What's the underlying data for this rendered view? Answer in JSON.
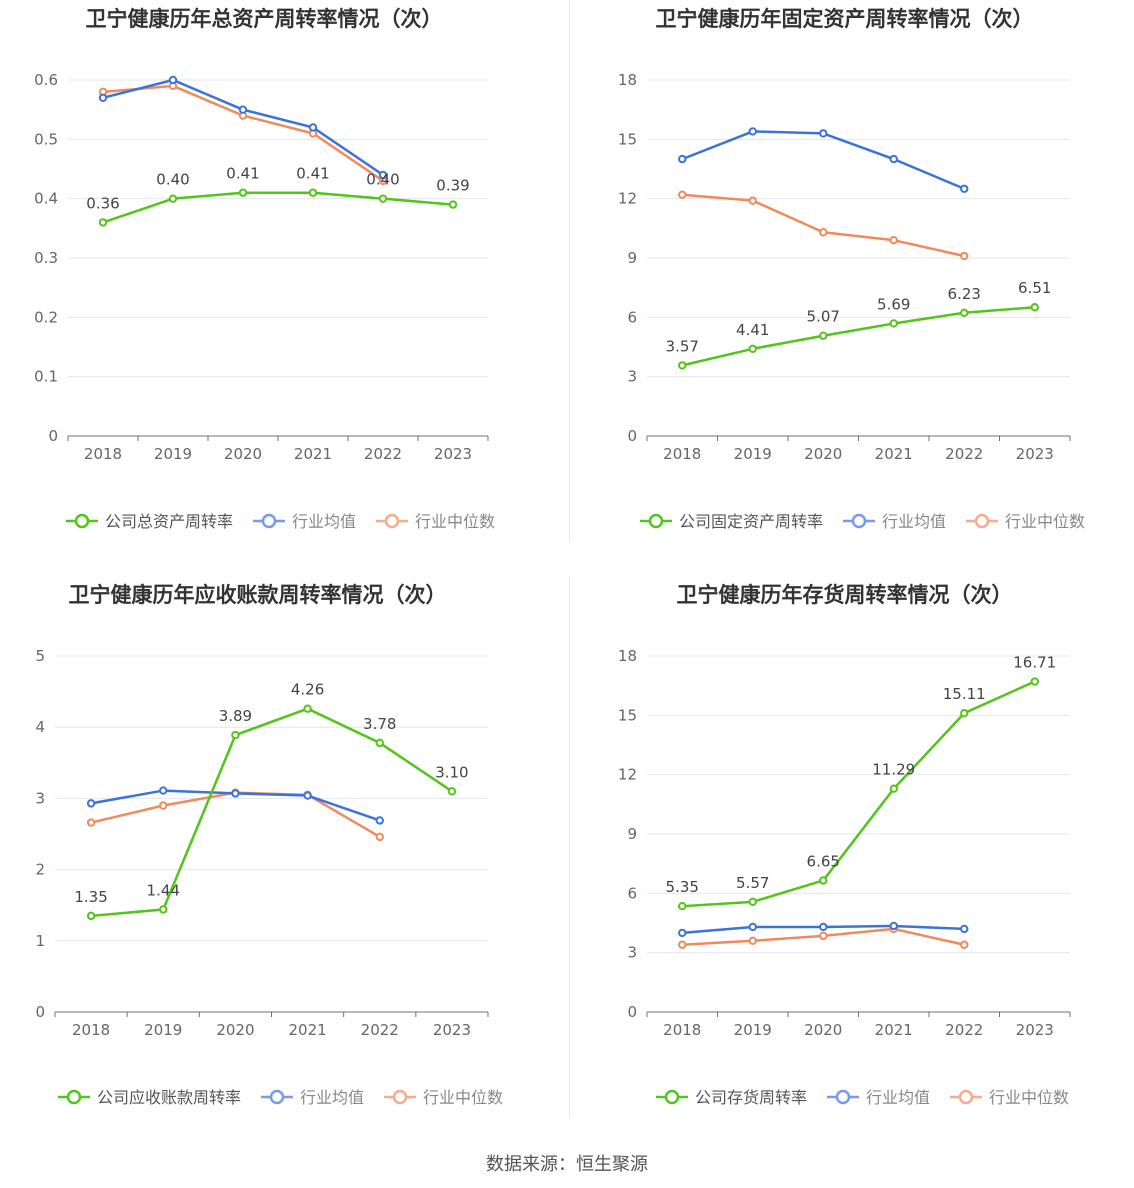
{
  "source": "数据来源：恒生聚源",
  "colors": {
    "company": "#52c41a",
    "avg": "#3b73d9",
    "median": "#f08a5d"
  },
  "chart_data": [
    {
      "type": "line",
      "title": "卫宁健康历年总资产周转率情况（次）",
      "categories": [
        "2018",
        "2019",
        "2020",
        "2021",
        "2022",
        "2023"
      ],
      "ylim": [
        0,
        0.6
      ],
      "yticks": [
        0,
        0.1,
        0.2,
        0.3,
        0.4,
        0.5,
        0.6
      ],
      "ytick_labels": [
        "0",
        "0.1",
        "0.2",
        "0.3",
        "0.4",
        "0.5",
        "0.6"
      ],
      "series": [
        {
          "name": "公司总资产周转率",
          "values": [
            0.36,
            0.4,
            0.41,
            0.41,
            0.4,
            0.39
          ],
          "labels": [
            "0.36",
            "0.40",
            "0.41",
            "0.41",
            "0.40",
            "0.39"
          ]
        },
        {
          "name": "行业均值",
          "values": [
            0.57,
            0.6,
            0.55,
            0.52,
            0.44,
            null
          ]
        },
        {
          "name": "行业中位数",
          "values": [
            0.58,
            0.59,
            0.54,
            0.51,
            0.43,
            null
          ]
        }
      ]
    },
    {
      "type": "line",
      "title": "卫宁健康历年固定资产周转率情况（次）",
      "categories": [
        "2018",
        "2019",
        "2020",
        "2021",
        "2022",
        "2023"
      ],
      "ylim": [
        0,
        18
      ],
      "yticks": [
        0,
        3,
        6,
        9,
        12,
        15,
        18
      ],
      "ytick_labels": [
        "0",
        "3",
        "6",
        "9",
        "12",
        "15",
        "18"
      ],
      "series": [
        {
          "name": "公司固定资产周转率",
          "values": [
            3.57,
            4.41,
            5.07,
            5.69,
            6.23,
            6.51
          ],
          "labels": [
            "3.57",
            "4.41",
            "5.07",
            "5.69",
            "6.23",
            "6.51"
          ]
        },
        {
          "name": "行业均值",
          "values": [
            14.0,
            15.4,
            15.3,
            14.0,
            12.5,
            null
          ]
        },
        {
          "name": "行业中位数",
          "values": [
            12.2,
            11.9,
            10.3,
            9.9,
            9.1,
            null
          ]
        }
      ]
    },
    {
      "type": "line",
      "title": "卫宁健康历年应收账款周转率情况（次）",
      "categories": [
        "2018",
        "2019",
        "2020",
        "2021",
        "2022",
        "2023"
      ],
      "ylim": [
        0,
        5
      ],
      "yticks": [
        0,
        1,
        2,
        3,
        4,
        5
      ],
      "ytick_labels": [
        "0",
        "1",
        "2",
        "3",
        "4",
        "5"
      ],
      "series": [
        {
          "name": "公司应收账款周转率",
          "values": [
            1.35,
            1.44,
            3.89,
            4.26,
            3.78,
            3.1
          ],
          "labels": [
            "1.35",
            "1.44",
            "3.89",
            "4.26",
            "3.78",
            "3.10"
          ]
        },
        {
          "name": "行业均值",
          "values": [
            2.93,
            3.11,
            3.07,
            3.04,
            2.69,
            null
          ]
        },
        {
          "name": "行业中位数",
          "values": [
            2.66,
            2.9,
            3.08,
            3.05,
            2.46,
            null
          ]
        }
      ]
    },
    {
      "type": "line",
      "title": "卫宁健康历年存货周转率情况（次）",
      "categories": [
        "2018",
        "2019",
        "2020",
        "2021",
        "2022",
        "2023"
      ],
      "ylim": [
        0,
        18
      ],
      "yticks": [
        0,
        3,
        6,
        9,
        12,
        15,
        18
      ],
      "ytick_labels": [
        "0",
        "3",
        "6",
        "9",
        "12",
        "15",
        "18"
      ],
      "series": [
        {
          "name": "公司存货周转率",
          "values": [
            5.35,
            5.57,
            6.65,
            11.29,
            15.11,
            16.71
          ],
          "labels": [
            "5.35",
            "5.57",
            "6.65",
            "11.29",
            "15.11",
            "16.71"
          ]
        },
        {
          "name": "行业均值",
          "values": [
            4.0,
            4.3,
            4.3,
            4.35,
            4.2,
            null
          ]
        },
        {
          "name": "行业中位数",
          "values": [
            3.4,
            3.6,
            3.85,
            4.2,
            3.4,
            null
          ]
        }
      ]
    }
  ]
}
